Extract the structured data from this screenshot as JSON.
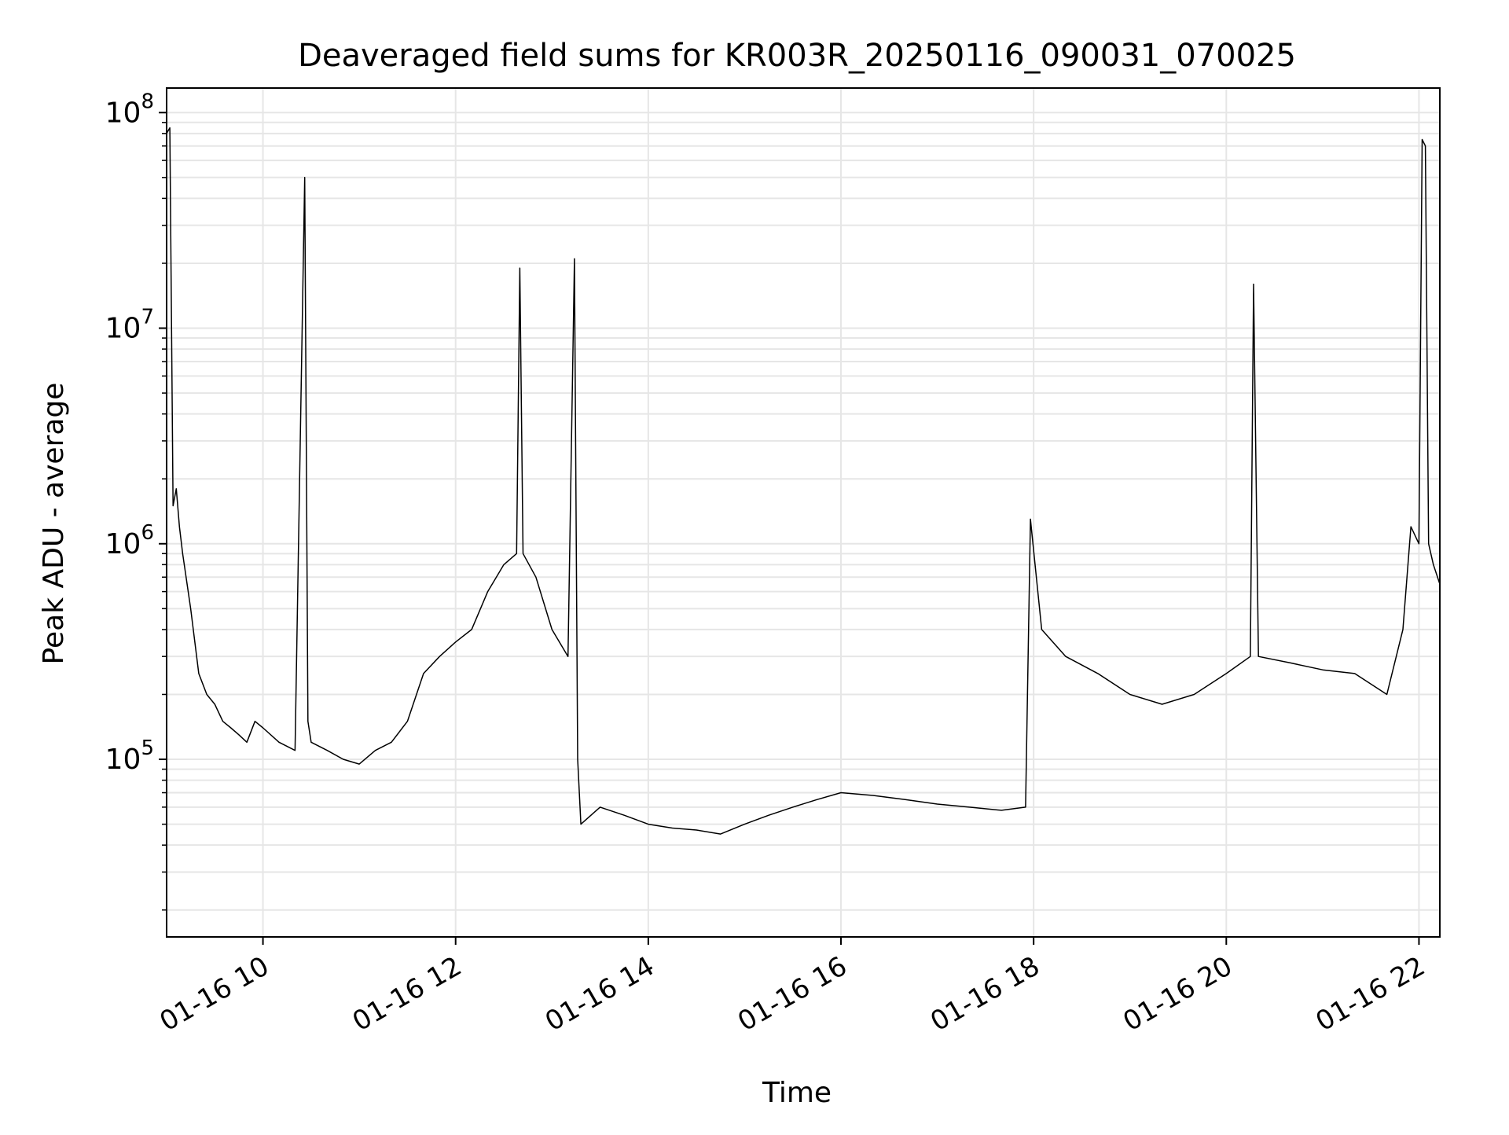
{
  "chart_data": {
    "type": "line",
    "title": "Deaveraged field sums for KR003R_20250116_090031_070025",
    "xlabel": "Time",
    "ylabel": "Peak ADU - average",
    "x_tick_labels": [
      "01-16 10",
      "01-16 12",
      "01-16 14",
      "01-16 16",
      "01-16 18",
      "01-16 20",
      "01-16 22"
    ],
    "x_tick_values": [
      "2025-01-16T10:00",
      "2025-01-16T12:00",
      "2025-01-16T14:00",
      "2025-01-16T16:00",
      "2025-01-16T18:00",
      "2025-01-16T20:00",
      "2025-01-16T22:00"
    ],
    "xlim": [
      "2025-01-16T09:00",
      "2025-01-16T22:13"
    ],
    "y_tick_labels": [
      {
        "base": "10",
        "exp": "5"
      },
      {
        "base": "10",
        "exp": "6"
      },
      {
        "base": "10",
        "exp": "7"
      },
      {
        "base": "10",
        "exp": "8"
      }
    ],
    "y_tick_values": [
      100000,
      1000000,
      10000000,
      100000000
    ],
    "yscale": "log",
    "ylim": [
      15000,
      130000000
    ],
    "grid": true,
    "line_color": "#000000",
    "grid_color": "#e6e6e6",
    "series": [
      {
        "x": [
          "2025-01-16T09:00",
          "2025-01-16T09:02",
          "2025-01-16T09:04",
          "2025-01-16T09:06",
          "2025-01-16T09:08",
          "2025-01-16T09:10",
          "2025-01-16T09:15",
          "2025-01-16T09:20",
          "2025-01-16T09:25",
          "2025-01-16T09:30",
          "2025-01-16T09:35",
          "2025-01-16T09:40",
          "2025-01-16T09:45",
          "2025-01-16T09:50",
          "2025-01-16T09:55",
          "2025-01-16T10:00",
          "2025-01-16T10:10",
          "2025-01-16T10:20",
          "2025-01-16T10:26",
          "2025-01-16T10:28",
          "2025-01-16T10:30",
          "2025-01-16T10:40",
          "2025-01-16T10:50",
          "2025-01-16T11:00",
          "2025-01-16T11:10",
          "2025-01-16T11:20",
          "2025-01-16T11:30",
          "2025-01-16T11:40",
          "2025-01-16T11:50",
          "2025-01-16T12:00",
          "2025-01-16T12:10",
          "2025-01-16T12:20",
          "2025-01-16T12:30",
          "2025-01-16T12:38",
          "2025-01-16T12:40",
          "2025-01-16T12:42",
          "2025-01-16T12:50",
          "2025-01-16T13:00",
          "2025-01-16T13:10",
          "2025-01-16T13:14",
          "2025-01-16T13:16",
          "2025-01-16T13:18",
          "2025-01-16T13:30",
          "2025-01-16T13:45",
          "2025-01-16T14:00",
          "2025-01-16T14:15",
          "2025-01-16T14:30",
          "2025-01-16T14:45",
          "2025-01-16T15:00",
          "2025-01-16T15:15",
          "2025-01-16T15:30",
          "2025-01-16T15:45",
          "2025-01-16T16:00",
          "2025-01-16T16:20",
          "2025-01-16T16:40",
          "2025-01-16T17:00",
          "2025-01-16T17:20",
          "2025-01-16T17:40",
          "2025-01-16T17:55",
          "2025-01-16T17:58",
          "2025-01-16T18:05",
          "2025-01-16T18:20",
          "2025-01-16T18:40",
          "2025-01-16T19:00",
          "2025-01-16T19:20",
          "2025-01-16T19:40",
          "2025-01-16T20:00",
          "2025-01-16T20:15",
          "2025-01-16T20:17",
          "2025-01-16T20:20",
          "2025-01-16T20:40",
          "2025-01-16T21:00",
          "2025-01-16T21:20",
          "2025-01-16T21:40",
          "2025-01-16T21:50",
          "2025-01-16T21:55",
          "2025-01-16T22:00",
          "2025-01-16T22:02",
          "2025-01-16T22:04",
          "2025-01-16T22:06",
          "2025-01-16T22:09",
          "2025-01-16T22:13"
        ],
        "y": [
          80000000,
          85000000,
          1500000,
          1800000,
          1200000,
          900000,
          500000,
          250000,
          200000,
          180000,
          150000,
          140000,
          130000,
          120000,
          150000,
          140000,
          120000,
          110000,
          50000000,
          150000,
          120000,
          110000,
          100000,
          95000,
          110000,
          120000,
          150000,
          250000,
          300000,
          350000,
          400000,
          600000,
          800000,
          900000,
          19000000,
          900000,
          700000,
          400000,
          300000,
          21000000,
          100000,
          50000,
          60000,
          55000,
          50000,
          48000,
          47000,
          45000,
          50000,
          55000,
          60000,
          65000,
          70000,
          68000,
          65000,
          62000,
          60000,
          58000,
          60000,
          1300000,
          400000,
          300000,
          250000,
          200000,
          180000,
          200000,
          250000,
          300000,
          16000000,
          300000,
          280000,
          260000,
          250000,
          200000,
          400000,
          1200000,
          1000000,
          75000000,
          70000000,
          1000000,
          800000,
          650000
        ]
      }
    ]
  }
}
